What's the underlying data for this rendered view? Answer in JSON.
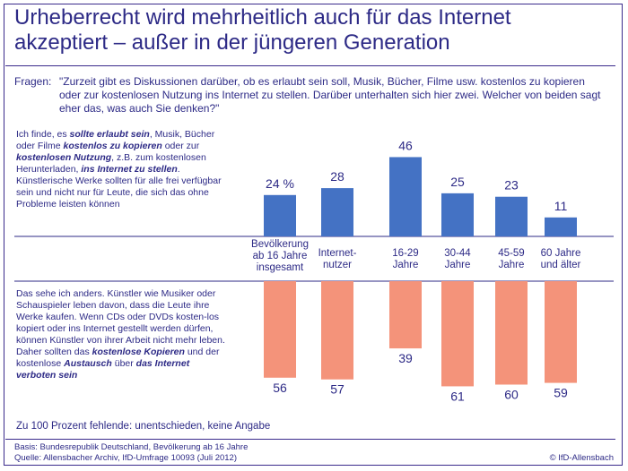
{
  "header": {
    "title_line1": "Urheberrecht wird mehrheitlich auch für das Internet",
    "title_line2": "akzeptiert – außer in der jüngeren Generation"
  },
  "question": {
    "lead": "Fragen:",
    "text": "\"Zurzeit gibt es Diskussionen darüber, ob es erlaubt sein soll, Musik, Bücher, Filme usw. kostenlos zu kopieren oder zur kostenlosen Nutzung ins Internet zu stellen. Darüber unterhalten sich hier zwei. Welcher von beiden sagt eher das, was auch Sie denken?\""
  },
  "option_top": {
    "p1": "Ich finde, es ",
    "b1": "sollte erlaubt sein",
    "p2": ", Musik, Bücher oder Filme ",
    "b2": "kostenlos zu kopieren",
    "p3": " oder zur ",
    "b3": "kostenlosen Nutzung",
    "p4": ", z.B. zum kostenlosen Herunterladen, ",
    "b4": "ins Internet zu stellen",
    "p5": ". Künstlerische Werke sollten für alle frei verfügbar sein und nicht nur für Leute, die sich das ohne Probleme leisten können"
  },
  "option_bottom": {
    "p1": "Das sehe ich anders. Künstler wie Musiker oder Schauspieler leben davon, dass die Leute ihre Werke kaufen. Wenn CDs oder DVDs kosten-los kopiert oder ins Internet gestellt werden dürfen, können Künstler von ihrer Arbeit nicht mehr leben. Daher sollten das ",
    "b1": "kostenlose Kopieren",
    "p2": " und der kostenlose ",
    "b2": "Austausch",
    "p3": " über ",
    "b3": "das Internet verboten sein"
  },
  "chart_data": {
    "type": "bar",
    "categories": [
      "Bevölkerung ab 16 Jahre insgesamt",
      "Internet-nutzer",
      "16-29 Jahre",
      "30-44 Jahre",
      "45-59 Jahre",
      "60 Jahre und älter"
    ],
    "category_lines": [
      [
        "Bevölkerung",
        "ab 16 Jahre",
        "insgesamt"
      ],
      [
        "Internet-",
        "nutzer"
      ],
      [
        "16-29",
        "Jahre"
      ],
      [
        "30-44",
        "Jahre"
      ],
      [
        "45-59",
        "Jahre"
      ],
      [
        "60 Jahre",
        "und älter"
      ]
    ],
    "series": [
      {
        "key": "erlaubt",
        "values": [
          24,
          28,
          46,
          25,
          23,
          11
        ],
        "labels": [
          "24 %",
          "28",
          "46",
          "25",
          "23",
          "11"
        ],
        "color": "#4472c4"
      },
      {
        "key": "verboten",
        "values": [
          56,
          57,
          39,
          61,
          60,
          59
        ],
        "labels": [
          "56",
          "57",
          "39",
          "61",
          "60",
          "59"
        ],
        "color": "#f4937a"
      }
    ],
    "ylim": [
      0,
      70
    ]
  },
  "footer": {
    "note": "Zu 100 Prozent fehlende: unentschieden, keine Angabe",
    "basis": "Basis: Bundesrepublik Deutschland, Bevölkerung ab 16 Jahre",
    "source": "Quelle: Allensbacher Archiv, IfD-Umfrage 10093 (Juli 2012)",
    "credit": "© IfD-Allensbach"
  }
}
